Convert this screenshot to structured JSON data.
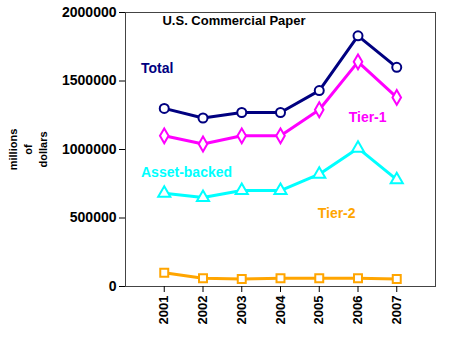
{
  "chart_data": {
    "type": "line",
    "title": "U.S. Commercial Paper",
    "ylabel": [
      "millions",
      "of",
      "dollars"
    ],
    "x": [
      2001,
      2002,
      2003,
      2004,
      2005,
      2006,
      2007
    ],
    "series": [
      {
        "name": "Total",
        "color": "#000080",
        "marker": "circle",
        "line_style": "solid",
        "values": [
          1300000,
          1230000,
          1270000,
          1270000,
          1430000,
          1830000,
          1600000
        ]
      },
      {
        "name": "Tier-1",
        "color": "#FF00FF",
        "marker": "diamond",
        "line_style": "solid",
        "values": [
          1100000,
          1040000,
          1100000,
          1100000,
          1290000,
          1640000,
          1380000
        ]
      },
      {
        "name": "Asset-backed",
        "color": "#00FFFF",
        "marker": "triangle",
        "line_style": "solid",
        "values": [
          680000,
          650000,
          700000,
          700000,
          820000,
          1010000,
          780000
        ]
      },
      {
        "name": "Tier-2",
        "color": "#FFA500",
        "marker": "square",
        "line_style": "solid",
        "values": [
          100000,
          60000,
          55000,
          60000,
          60000,
          60000,
          55000
        ]
      }
    ],
    "xlim": [
      2000,
      2008
    ],
    "xticks": [
      2001,
      2002,
      2003,
      2004,
      2005,
      2006,
      2007
    ],
    "ylim": [
      0,
      2000000
    ],
    "yticks": [
      0,
      500000,
      1000000,
      1500000,
      2000000
    ],
    "grid": false
  }
}
